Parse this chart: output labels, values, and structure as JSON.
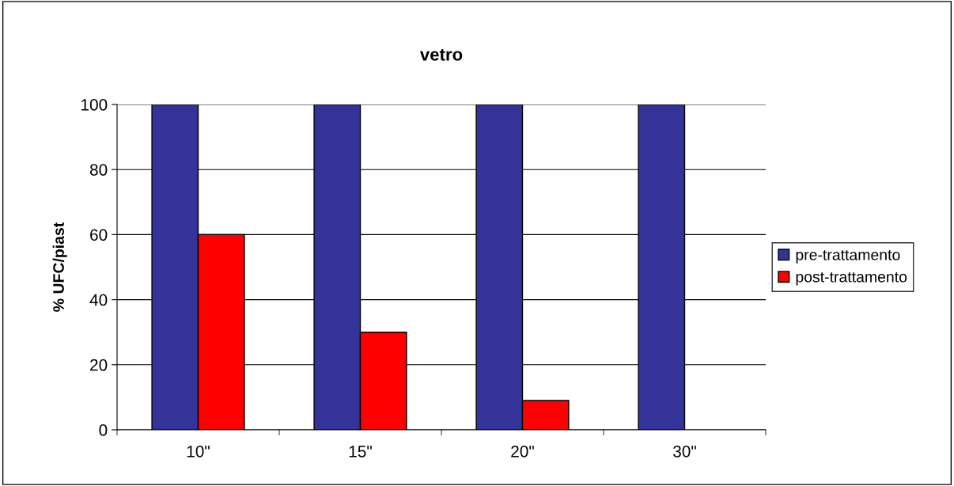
{
  "chart_data": {
    "type": "bar",
    "title": "vetro",
    "ylabel": "% UFC/piast",
    "categories": [
      "10\"",
      "15\"",
      "20\"",
      "30\""
    ],
    "series": [
      {
        "name": "pre-trattamento",
        "color": "#333399",
        "values": [
          100,
          100,
          100,
          100
        ]
      },
      {
        "name": "post-trattamento",
        "color": "#ff0000",
        "values": [
          60,
          30,
          9,
          0
        ]
      }
    ],
    "ylim": [
      0,
      100
    ],
    "yticks": [
      0,
      20,
      40,
      60,
      80,
      100
    ],
    "grid": "y",
    "legend": "right"
  }
}
